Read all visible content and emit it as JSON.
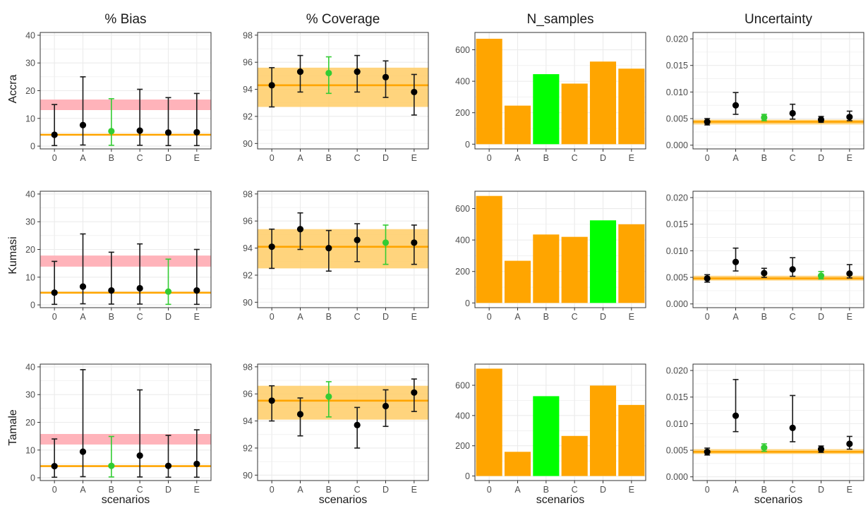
{
  "figure": {
    "type": "faceted",
    "column_titles": [
      "% Bias",
      "% Coverage",
      "N_samples",
      "Uncertainty"
    ],
    "row_labels": [
      "Accra",
      "Kumasi",
      "Tamale"
    ],
    "xlabel": "scenarios",
    "categories": [
      "0",
      "A",
      "B",
      "C",
      "D",
      "E"
    ]
  },
  "colors": {
    "orange": "#FFA500",
    "green": "#00FF00",
    "highlight_errorbar": "#33CC33",
    "point": "#000000",
    "band_orange": "#FFCC66",
    "band_pink": "#FFB3BA",
    "grid": "#EBEBEB",
    "border": "#333333"
  },
  "chart_data": [
    {
      "panel": "Accra / % Bias",
      "type": "errorbar",
      "categories": [
        "0",
        "A",
        "B",
        "C",
        "D",
        "E"
      ],
      "y": [
        4.1,
        7.6,
        5.4,
        5.6,
        4.9,
        5.0
      ],
      "lower": [
        0.2,
        0.4,
        0.3,
        0.3,
        0.2,
        0.2
      ],
      "upper": [
        15,
        25,
        17.1,
        20.5,
        17.5,
        19
      ],
      "highlight": "B",
      "ref_line": 4.1,
      "ref_band": [
        0.2,
        0.2
      ],
      "target_band": [
        13,
        16.8
      ],
      "ylim": [
        -1,
        41
      ],
      "yticks": [
        0,
        10,
        20,
        30,
        40
      ]
    },
    {
      "panel": "Accra / % Coverage",
      "type": "errorbar",
      "categories": [
        "0",
        "A",
        "B",
        "C",
        "D",
        "E"
      ],
      "y": [
        94.3,
        95.3,
        95.2,
        95.3,
        94.9,
        93.8
      ],
      "lower": [
        92.7,
        93.8,
        93.7,
        93.8,
        93.4,
        92.1
      ],
      "upper": [
        95.6,
        96.5,
        96.4,
        96.5,
        96.1,
        95.1
      ],
      "highlight": "B",
      "ref_line": 94.3,
      "ref_band": [
        92.7,
        95.6
      ],
      "ylim": [
        89.6,
        98.2
      ],
      "yticks": [
        90,
        92,
        94,
        96,
        98
      ]
    },
    {
      "panel": "Accra / N_samples",
      "type": "bar",
      "categories": [
        "0",
        "A",
        "B",
        "C",
        "D",
        "E"
      ],
      "values": [
        670,
        245,
        445,
        385,
        525,
        480
      ],
      "highlight": "B",
      "ylim": [
        -30,
        710
      ],
      "yticks": [
        0,
        200,
        400,
        600
      ]
    },
    {
      "panel": "Accra / Uncertainty",
      "type": "errorbar",
      "categories": [
        "0",
        "A",
        "B",
        "C",
        "D",
        "E"
      ],
      "y": [
        0.0044,
        0.0075,
        0.0052,
        0.006,
        0.0048,
        0.0053
      ],
      "lower": [
        0.0038,
        0.0058,
        0.0046,
        0.0049,
        0.0043,
        0.0046
      ],
      "upper": [
        0.005,
        0.0099,
        0.0058,
        0.0077,
        0.0054,
        0.0064
      ],
      "highlight": "B",
      "ref_line": 0.0044,
      "ref_band": [
        0.0039,
        0.0048
      ],
      "ylim": [
        -0.0007,
        0.0212
      ],
      "yticks": [
        0.0,
        0.005,
        0.01,
        0.015,
        0.02
      ],
      "ytick_labels": [
        "0.000",
        "0.005",
        "0.010",
        "0.015",
        "0.020"
      ]
    },
    {
      "panel": "Kumasi / % Bias",
      "type": "errorbar",
      "categories": [
        "0",
        "A",
        "B",
        "C",
        "D",
        "E"
      ],
      "y": [
        4.4,
        6.6,
        5.2,
        6.0,
        4.8,
        5.2
      ],
      "lower": [
        0.2,
        0.4,
        0.3,
        0.3,
        0.2,
        0.2
      ],
      "upper": [
        15.7,
        25.6,
        19,
        22,
        16.5,
        20
      ],
      "highlight": "D",
      "ref_line": 4.4,
      "ref_band": [
        0.2,
        0.2
      ],
      "target_band": [
        13.8,
        17.8
      ],
      "ylim": [
        -1,
        41
      ],
      "yticks": [
        0,
        10,
        20,
        30,
        40
      ]
    },
    {
      "panel": "Kumasi / % Coverage",
      "type": "errorbar",
      "categories": [
        "0",
        "A",
        "B",
        "C",
        "D",
        "E"
      ],
      "y": [
        94.1,
        95.4,
        94.0,
        94.6,
        94.4,
        94.4
      ],
      "lower": [
        92.5,
        93.9,
        92.3,
        93.0,
        92.8,
        92.8
      ],
      "upper": [
        95.4,
        96.6,
        95.3,
        95.8,
        95.7,
        95.7
      ],
      "highlight": "D",
      "ref_line": 94.1,
      "ref_band": [
        92.5,
        95.4
      ],
      "ylim": [
        89.6,
        98.2
      ],
      "yticks": [
        90,
        92,
        94,
        96,
        98
      ]
    },
    {
      "panel": "Kumasi / N_samples",
      "type": "bar",
      "categories": [
        "0",
        "A",
        "B",
        "C",
        "D",
        "E"
      ],
      "values": [
        680,
        268,
        435,
        420,
        525,
        500
      ],
      "highlight": "D",
      "ylim": [
        -30,
        710
      ],
      "yticks": [
        0,
        200,
        400,
        600
      ]
    },
    {
      "panel": "Kumasi / Uncertainty",
      "type": "errorbar",
      "categories": [
        "0",
        "A",
        "B",
        "C",
        "D",
        "E"
      ],
      "y": [
        0.0048,
        0.0079,
        0.0058,
        0.0065,
        0.0053,
        0.0057
      ],
      "lower": [
        0.0041,
        0.0062,
        0.005,
        0.0052,
        0.0047,
        0.0049
      ],
      "upper": [
        0.0055,
        0.0105,
        0.0067,
        0.0087,
        0.0061,
        0.0074
      ],
      "highlight": "D",
      "ref_line": 0.0048,
      "ref_band": [
        0.0044,
        0.0053
      ],
      "ylim": [
        -0.0007,
        0.0212
      ],
      "yticks": [
        0.0,
        0.005,
        0.01,
        0.015,
        0.02
      ],
      "ytick_labels": [
        "0.000",
        "0.005",
        "0.010",
        "0.015",
        "0.020"
      ]
    },
    {
      "panel": "Tamale / % Bias",
      "type": "errorbar",
      "categories": [
        "0",
        "A",
        "B",
        "C",
        "D",
        "E"
      ],
      "y": [
        4.2,
        9.4,
        4.3,
        8.0,
        4.3,
        5.0
      ],
      "lower": [
        0.2,
        0.4,
        0.3,
        0.3,
        0.2,
        0.2
      ],
      "upper": [
        14,
        39,
        14.9,
        31.7,
        15.3,
        17.3
      ],
      "highlight": "B",
      "ref_line": 4.2,
      "ref_band": [
        0.2,
        0.2
      ],
      "target_band": [
        12,
        15.8
      ],
      "ylim": [
        -1,
        41
      ],
      "yticks": [
        0,
        10,
        20,
        30,
        40
      ]
    },
    {
      "panel": "Tamale / % Coverage",
      "type": "errorbar",
      "categories": [
        "0",
        "A",
        "B",
        "C",
        "D",
        "E"
      ],
      "y": [
        95.5,
        94.5,
        95.8,
        93.7,
        95.1,
        96.1
      ],
      "lower": [
        94.0,
        92.9,
        94.3,
        92.0,
        93.6,
        94.7
      ],
      "upper": [
        96.6,
        95.7,
        96.9,
        95.0,
        96.3,
        97.1
      ],
      "highlight": "B",
      "ref_line": 95.5,
      "ref_band": [
        94.1,
        96.6
      ],
      "ylim": [
        89.6,
        98.2
      ],
      "yticks": [
        90,
        92,
        94,
        96,
        98
      ]
    },
    {
      "panel": "Tamale / N_samples",
      "type": "bar",
      "categories": [
        "0",
        "A",
        "B",
        "C",
        "D",
        "E"
      ],
      "values": [
        710,
        160,
        528,
        265,
        598,
        470
      ],
      "highlight": "B",
      "ylim": [
        -30,
        740
      ],
      "yticks": [
        0,
        200,
        400,
        600
      ]
    },
    {
      "panel": "Tamale / Uncertainty",
      "type": "errorbar",
      "categories": [
        "0",
        "A",
        "B",
        "C",
        "D",
        "E"
      ],
      "y": [
        0.0047,
        0.0115,
        0.0055,
        0.0092,
        0.0052,
        0.0062
      ],
      "lower": [
        0.0041,
        0.0085,
        0.0048,
        0.0066,
        0.0046,
        0.0052
      ],
      "upper": [
        0.0054,
        0.0183,
        0.0062,
        0.0153,
        0.0058,
        0.0076
      ],
      "highlight": "B",
      "ref_line": 0.0047,
      "ref_band": [
        0.0043,
        0.0052
      ],
      "ylim": [
        -0.0007,
        0.0212
      ],
      "yticks": [
        0.0,
        0.005,
        0.01,
        0.015,
        0.02
      ],
      "ytick_labels": [
        "0.000",
        "0.005",
        "0.010",
        "0.015",
        "0.020"
      ]
    }
  ]
}
